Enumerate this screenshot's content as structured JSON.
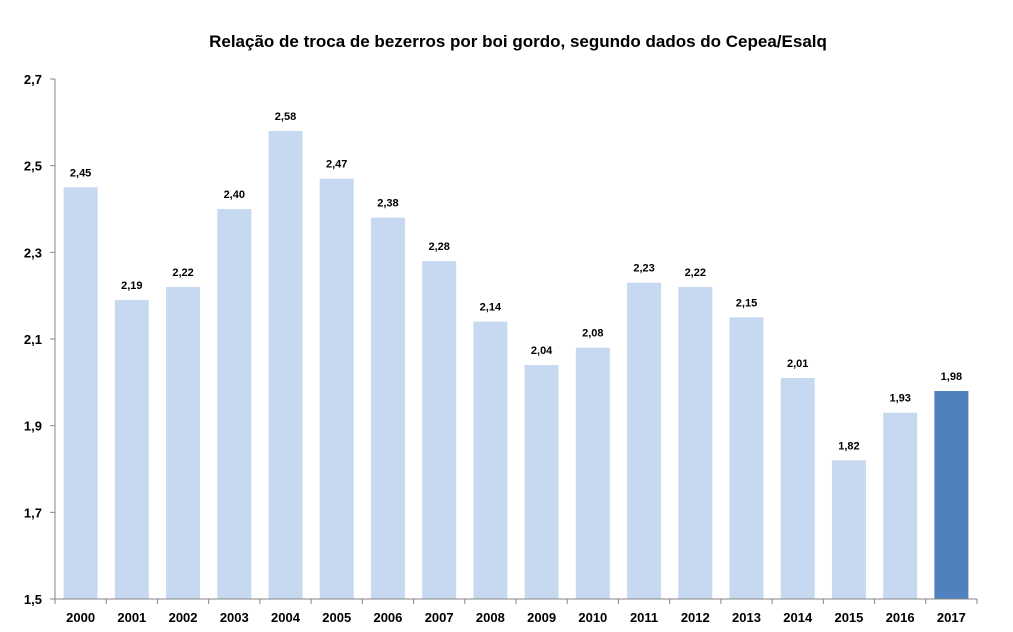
{
  "chart_data": {
    "type": "bar",
    "title": "Relação de troca de bezerros por boi gordo, segundo  dados do Cepea/Esalq",
    "xlabel": "",
    "ylabel": "",
    "ylim": [
      1.5,
      2.7
    ],
    "yticks": [
      "1,5",
      "1,7",
      "1,9",
      "2,1",
      "2,3",
      "2,5",
      "2,7"
    ],
    "ytick_values": [
      1.5,
      1.7,
      1.9,
      2.1,
      2.3,
      2.5,
      2.7
    ],
    "grid": false,
    "legend": "none",
    "categories": [
      "2000",
      "2001",
      "2002",
      "2003",
      "2004",
      "2005",
      "2006",
      "2007",
      "2008",
      "2009",
      "2010",
      "2011",
      "2012",
      "2013",
      "2014",
      "2015",
      "2016",
      "2017"
    ],
    "values": [
      2.45,
      2.19,
      2.22,
      2.4,
      2.58,
      2.47,
      2.38,
      2.28,
      2.14,
      2.04,
      2.08,
      2.23,
      2.22,
      2.15,
      2.01,
      1.82,
      1.93,
      1.98
    ],
    "data_labels": [
      "2,45",
      "2,19",
      "2,22",
      "2,40",
      "2,58",
      "2,47",
      "2,38",
      "2,28",
      "2,14",
      "2,04",
      "2,08",
      "2,23",
      "2,22",
      "2,15",
      "2,01",
      "1,82",
      "1,93",
      "1,98"
    ],
    "colors": {
      "bar": "#c6d9f1",
      "highlight": "#4f81bd",
      "axis": "#868686"
    },
    "highlight_category": "2017"
  }
}
